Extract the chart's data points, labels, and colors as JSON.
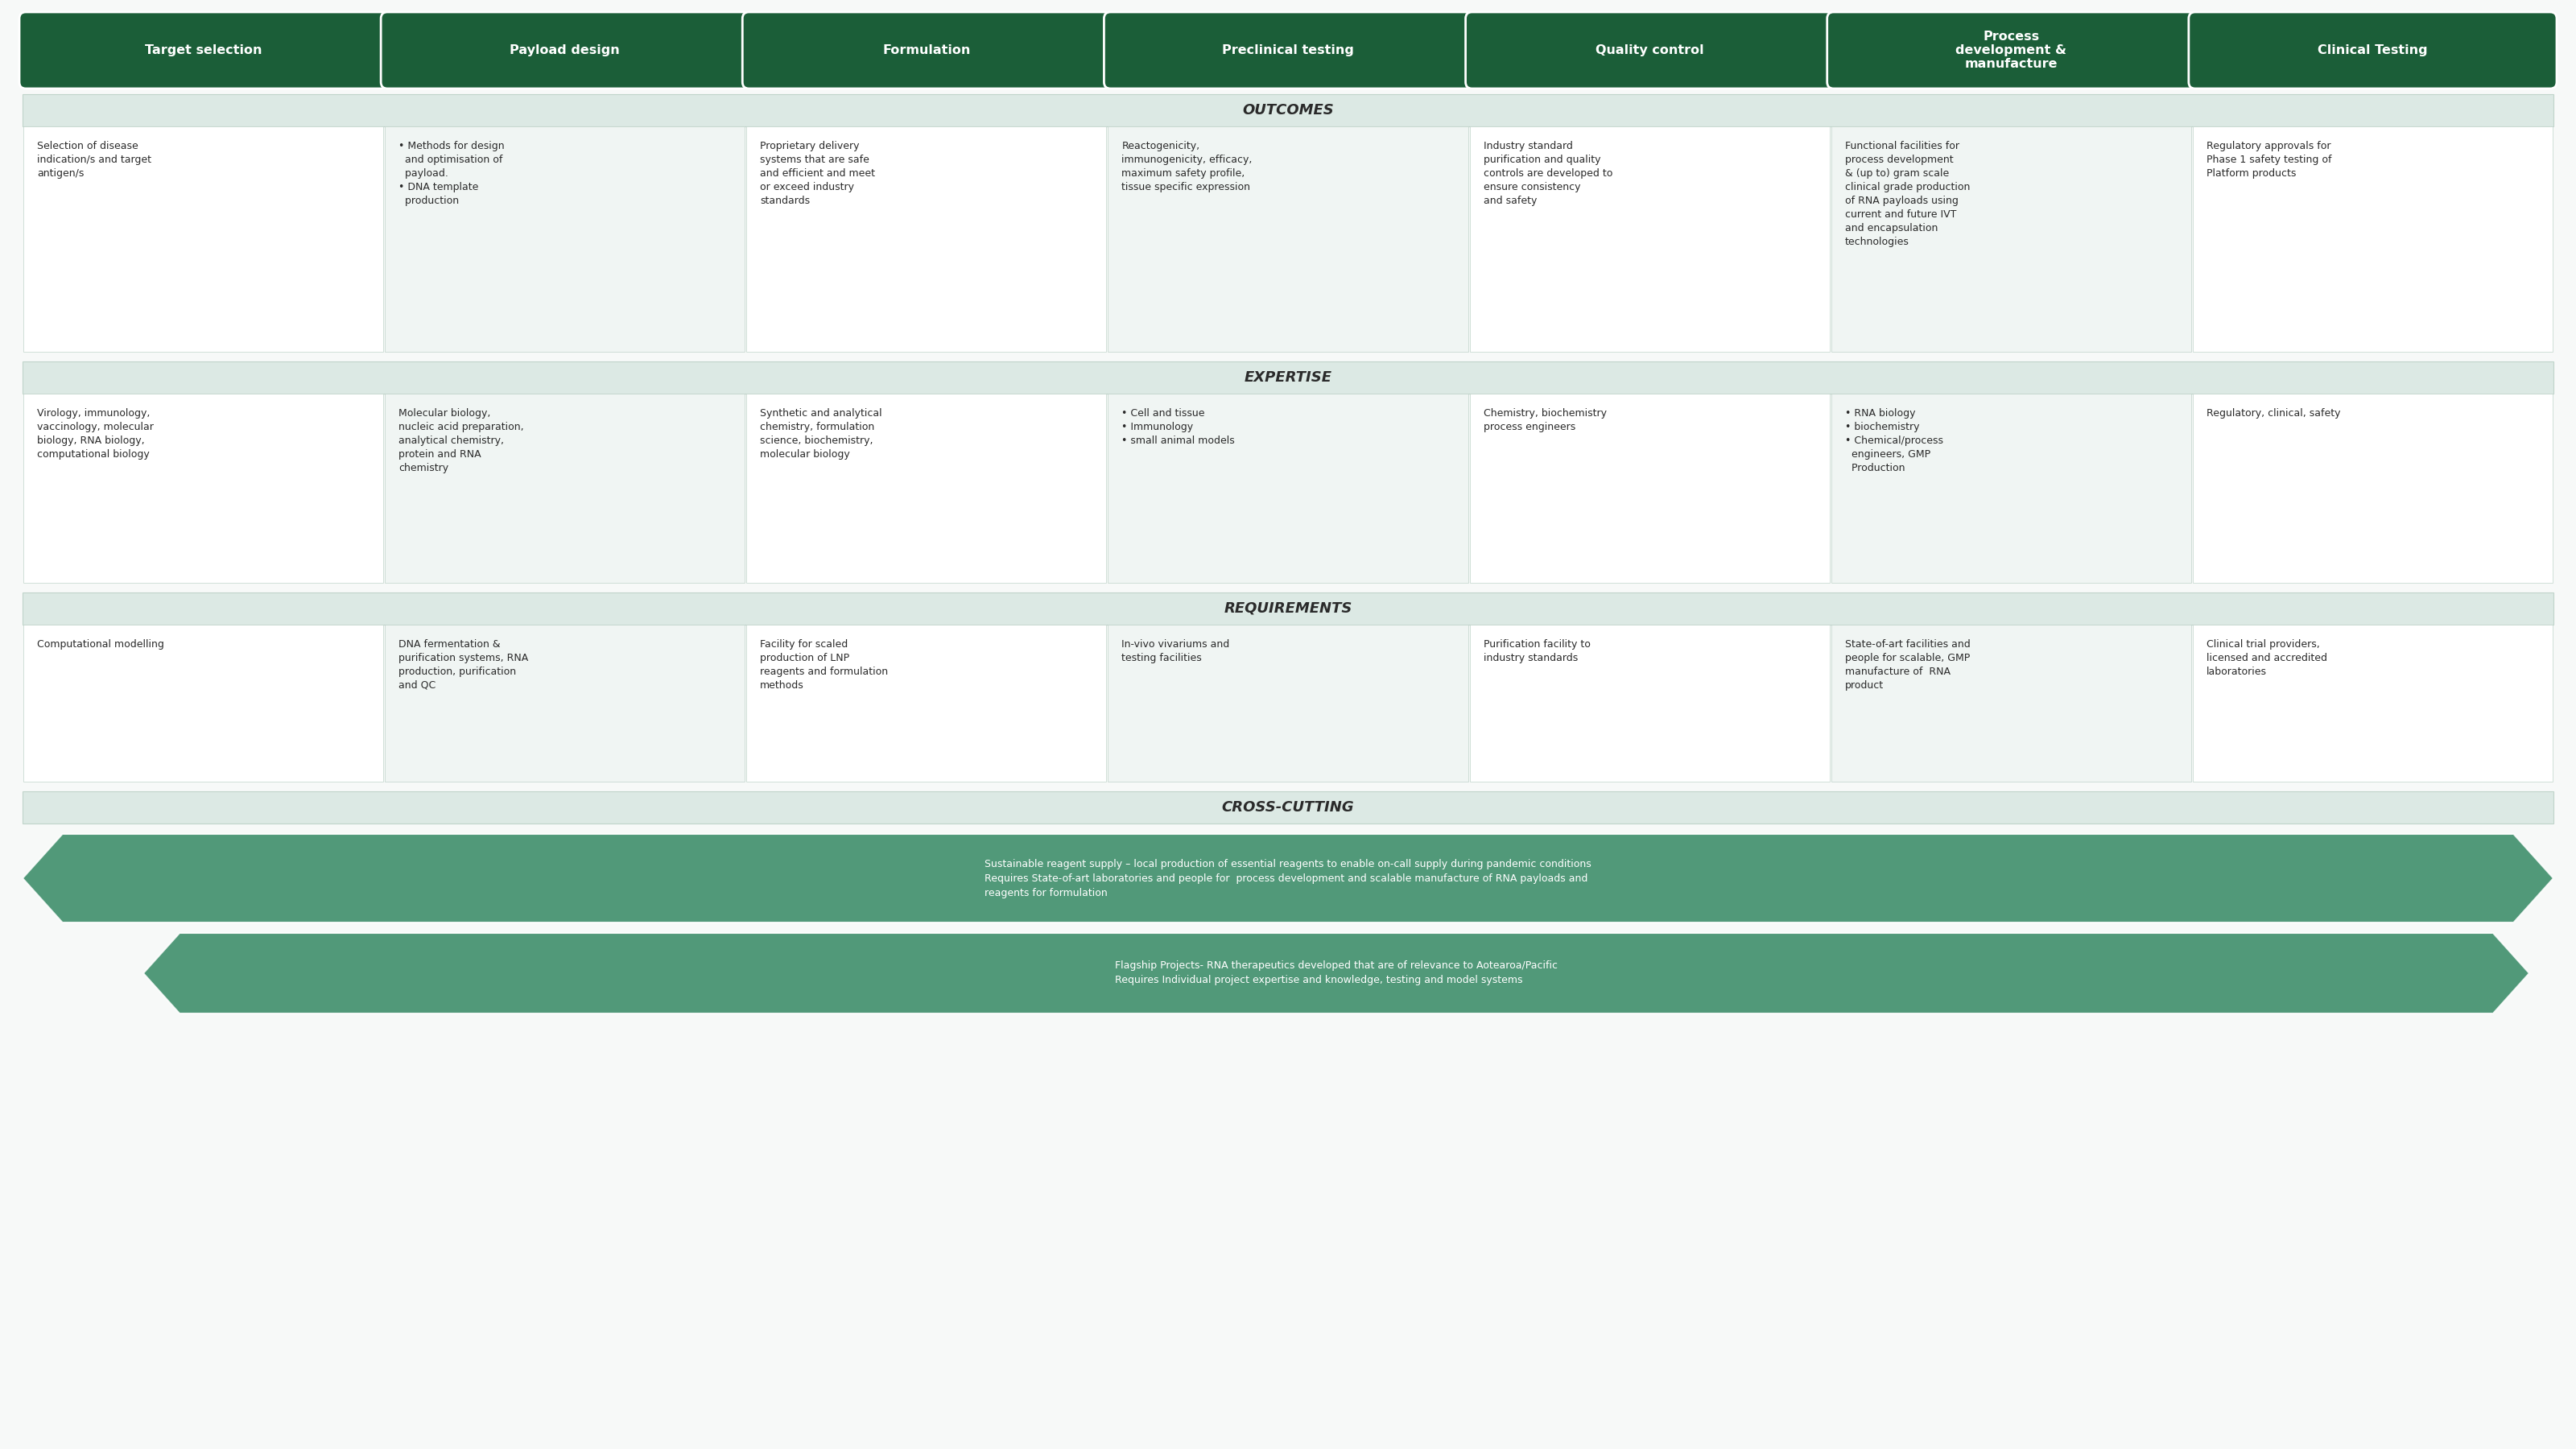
{
  "bg_color": "#f7f9f8",
  "header_bg": "#1b5e38",
  "header_text_color": "#ffffff",
  "section_header_bg": "#dce9e4",
  "cell_bg_A": "#ffffff",
  "cell_bg_B": "#f0f5f3",
  "cell_text_color": "#2a2a2a",
  "border_color": "#c0d4ca",
  "arrow_color": "#3a8c68",
  "columns": [
    "Target selection",
    "Payload design",
    "Formulation",
    "Preclinical testing",
    "Quality control",
    "Process\ndevelopment &\nmanufacture",
    "Clinical Testing"
  ],
  "outcomes_cells": [
    "Selection of disease\nindication/s and target\nantigen/s",
    "• Methods for design\n  and optimisation of\n  payload.\n• DNA template\n  production",
    "Proprietary delivery\nsystems that are safe\nand efficient and meet\nor exceed industry\nstandards",
    "Reactogenicity,\nimmunogenicity, efficacy,\nmaximum safety profile,\ntissue specific expression",
    "Industry standard\npurification and quality\ncontrols are developed to\nensure consistency\nand safety",
    "Functional facilities for\nprocess development\n& (up to) gram scale\nclinical grade production\nof RNA payloads using\ncurrent and future IVT\nand encapsulation\ntechnologies",
    "Regulatory approvals for\nPhase 1 safety testing of\nPlatform products"
  ],
  "expertise_cells": [
    "Virology, immunology,\nvaccinology, molecular\nbiology, RNA biology,\ncomputational biology",
    "Molecular biology,\nnucleic acid preparation,\nanalytical chemistry,\nprotein and RNA\nchemistry",
    "Synthetic and analytical\nchemistry, formulation\nscience, biochemistry,\nmolecular biology",
    "• Cell and tissue\n• Immunology\n• small animal models",
    "Chemistry, biochemistry\nprocess engineers",
    "• RNA biology\n• biochemistry\n• Chemical/process\n  engineers, GMP\n  Production",
    "Regulatory, clinical, safety"
  ],
  "requirements_cells": [
    "Computational modelling",
    "DNA fermentation &\npurification systems, RNA\nproduction, purification\nand QC",
    "Facility for scaled\nproduction of LNP\nreagents and formulation\nmethods",
    "In-vivo vivariums and\ntesting facilities",
    "Purification facility to\nindustry standards",
    "State-of-art facilities and\npeople for scalable, GMP\nmanufacture of  RNA\nproduct",
    "Clinical trial providers,\nlicensed and accredited\nlaboratories"
  ],
  "arrow1_text": "Sustainable reagent supply – local production of essential reagents to enable on-call supply during pandemic conditions\nRequires State-of-art laboratories and people for  process development and scalable manufacture of RNA payloads and\nreagents for formulation",
  "arrow2_text": "Flagship Projects- RNA therapeutics developed that are of relevance to Aotearoa/Pacific\nRequires Individual project expertise and knowledge, testing and model systems"
}
